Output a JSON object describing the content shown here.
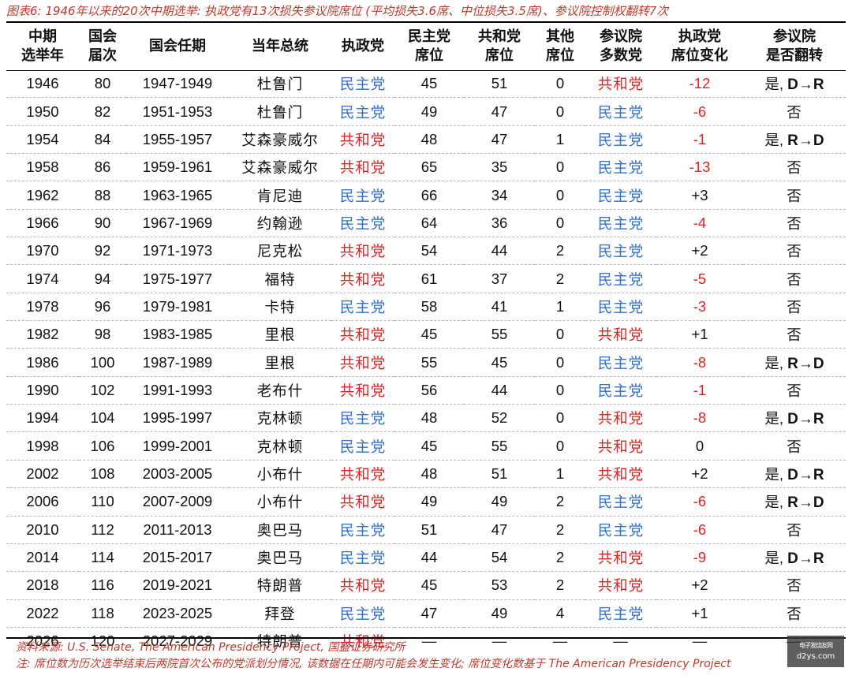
{
  "caption": "图表6: 1946年以来的20次中期选举: 执政党有13次损失参议院席位 (平均损失3.6席、中位损失3.5席)、参议院控制权翻转7次",
  "headers": [
    [
      "中期",
      "选举年"
    ],
    [
      "国会",
      "届次"
    ],
    [
      "国会任期"
    ],
    [
      "当年总统"
    ],
    [
      "执政党"
    ],
    [
      "民主党",
      "席位"
    ],
    [
      "共和党",
      "席位"
    ],
    [
      "其他",
      "席位"
    ],
    [
      "参议院",
      "多数党"
    ],
    [
      "执政党",
      "席位变化"
    ],
    [
      "参议院",
      "是否翻转"
    ]
  ],
  "party_colors": {
    "民主党": "#2f6fd0",
    "共和党": "#e22222",
    "negative_change": "#e22222"
  },
  "flip_yes_label": "是,",
  "rows": [
    {
      "year": "1946",
      "congress": "80",
      "term": "1947-1949",
      "president": "杜鲁门",
      "ruling": "民主党",
      "dem": "45",
      "rep": "51",
      "other": "0",
      "majority": "共和党",
      "change": "-12",
      "flip": "D→R"
    },
    {
      "year": "1950",
      "congress": "82",
      "term": "1951-1953",
      "president": "杜鲁门",
      "ruling": "民主党",
      "dem": "49",
      "rep": "47",
      "other": "0",
      "majority": "民主党",
      "change": "-6",
      "flip": "否"
    },
    {
      "year": "1954",
      "congress": "84",
      "term": "1955-1957",
      "president": "艾森豪威尔",
      "ruling": "共和党",
      "dem": "48",
      "rep": "47",
      "other": "1",
      "majority": "民主党",
      "change": "-1",
      "flip": "R→D"
    },
    {
      "year": "1958",
      "congress": "86",
      "term": "1959-1961",
      "president": "艾森豪威尔",
      "ruling": "共和党",
      "dem": "65",
      "rep": "35",
      "other": "0",
      "majority": "民主党",
      "change": "-13",
      "flip": "否"
    },
    {
      "year": "1962",
      "congress": "88",
      "term": "1963-1965",
      "president": "肯尼迪",
      "ruling": "民主党",
      "dem": "66",
      "rep": "34",
      "other": "0",
      "majority": "民主党",
      "change": "+3",
      "flip": "否"
    },
    {
      "year": "1966",
      "congress": "90",
      "term": "1967-1969",
      "president": "约翰逊",
      "ruling": "民主党",
      "dem": "64",
      "rep": "36",
      "other": "0",
      "majority": "民主党",
      "change": "-4",
      "flip": "否"
    },
    {
      "year": "1970",
      "congress": "92",
      "term": "1971-1973",
      "president": "尼克松",
      "ruling": "共和党",
      "dem": "54",
      "rep": "44",
      "other": "2",
      "majority": "民主党",
      "change": "+2",
      "flip": "否"
    },
    {
      "year": "1974",
      "congress": "94",
      "term": "1975-1977",
      "president": "福特",
      "ruling": "共和党",
      "dem": "61",
      "rep": "37",
      "other": "2",
      "majority": "民主党",
      "change": "-5",
      "flip": "否"
    },
    {
      "year": "1978",
      "congress": "96",
      "term": "1979-1981",
      "president": "卡特",
      "ruling": "民主党",
      "dem": "58",
      "rep": "41",
      "other": "1",
      "majority": "民主党",
      "change": "-3",
      "flip": "否"
    },
    {
      "year": "1982",
      "congress": "98",
      "term": "1983-1985",
      "president": "里根",
      "ruling": "共和党",
      "dem": "45",
      "rep": "55",
      "other": "0",
      "majority": "共和党",
      "change": "+1",
      "flip": "否"
    },
    {
      "year": "1986",
      "congress": "100",
      "term": "1987-1989",
      "president": "里根",
      "ruling": "共和党",
      "dem": "55",
      "rep": "45",
      "other": "0",
      "majority": "民主党",
      "change": "-8",
      "flip": "R→D"
    },
    {
      "year": "1990",
      "congress": "102",
      "term": "1991-1993",
      "president": "老布什",
      "ruling": "共和党",
      "dem": "56",
      "rep": "44",
      "other": "0",
      "majority": "民主党",
      "change": "-1",
      "flip": "否"
    },
    {
      "year": "1994",
      "congress": "104",
      "term": "1995-1997",
      "president": "克林顿",
      "ruling": "民主党",
      "dem": "48",
      "rep": "52",
      "other": "0",
      "majority": "共和党",
      "change": "-8",
      "flip": "D→R"
    },
    {
      "year": "1998",
      "congress": "106",
      "term": "1999-2001",
      "president": "克林顿",
      "ruling": "民主党",
      "dem": "45",
      "rep": "55",
      "other": "0",
      "majority": "共和党",
      "change": "0",
      "flip": "否"
    },
    {
      "year": "2002",
      "congress": "108",
      "term": "2003-2005",
      "president": "小布什",
      "ruling": "共和党",
      "dem": "48",
      "rep": "51",
      "other": "1",
      "majority": "共和党",
      "change": "+2",
      "flip": "D→R"
    },
    {
      "year": "2006",
      "congress": "110",
      "term": "2007-2009",
      "president": "小布什",
      "ruling": "共和党",
      "dem": "49",
      "rep": "49",
      "other": "2",
      "majority": "民主党",
      "change": "-6",
      "flip": "R→D"
    },
    {
      "year": "2010",
      "congress": "112",
      "term": "2011-2013",
      "president": "奥巴马",
      "ruling": "民主党",
      "dem": "51",
      "rep": "47",
      "other": "2",
      "majority": "民主党",
      "change": "-6",
      "flip": "否"
    },
    {
      "year": "2014",
      "congress": "114",
      "term": "2015-2017",
      "president": "奥巴马",
      "ruling": "民主党",
      "dem": "44",
      "rep": "54",
      "other": "2",
      "majority": "共和党",
      "change": "-9",
      "flip": "D→R"
    },
    {
      "year": "2018",
      "congress": "116",
      "term": "2019-2021",
      "president": "特朗普",
      "ruling": "共和党",
      "dem": "45",
      "rep": "53",
      "other": "2",
      "majority": "共和党",
      "change": "+2",
      "flip": "否"
    },
    {
      "year": "2022",
      "congress": "118",
      "term": "2023-2025",
      "president": "拜登",
      "ruling": "民主党",
      "dem": "47",
      "rep": "49",
      "other": "4",
      "majority": "民主党",
      "change": "+1",
      "flip": "否"
    },
    {
      "year": "2026",
      "congress": "120",
      "term": "2027-2029",
      "president": "特朗普",
      "ruling": "共和党",
      "dem": "—",
      "rep": "—",
      "other": "—",
      "majority": "—",
      "change": "—",
      "flip": "—"
    }
  ],
  "source": "资料来源: U.S. Senate, The American Presidency Project, 国盛证券研究所",
  "note": "注: 席位数为历次选举结束后两院首次公布的党派划分情况, 该数据在任期内可能会发生变化; 席位变化数基于 The American Presidency Project",
  "watermark": {
    "line1": "电子发烧友网",
    "line2": "d2ys.com"
  }
}
